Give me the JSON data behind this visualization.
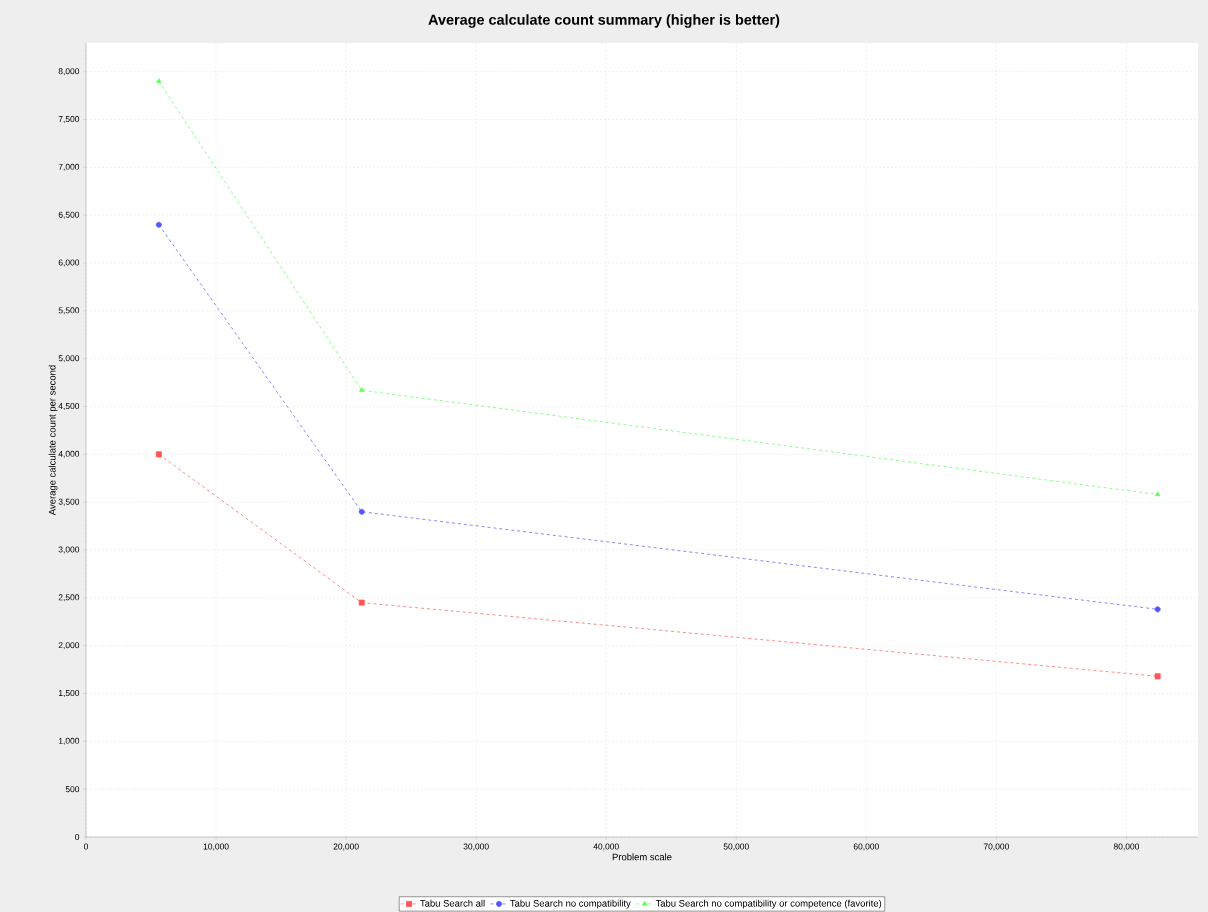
{
  "chart_data": {
    "type": "line",
    "title": "Average calculate count summary (higher is better)",
    "xlabel": "Problem scale",
    "ylabel": "Average calculate count per second",
    "series": [
      {
        "name": "Tabu Search all",
        "color": "#ff5555",
        "marker": "square",
        "x": [
          5600,
          21200,
          82400
        ],
        "values": [
          4000,
          2450,
          1680
        ]
      },
      {
        "name": "Tabu Search no compatibility",
        "color": "#5555ff",
        "marker": "circle",
        "x": [
          5600,
          21200,
          82400
        ],
        "values": [
          6400,
          3400,
          2380
        ]
      },
      {
        "name": "Tabu Search no compatibility or competence (favorite)",
        "color": "#55ff55",
        "marker": "triangle",
        "x": [
          5600,
          21200,
          82400
        ],
        "values": [
          7900,
          4670,
          3580
        ]
      }
    ],
    "xlim": [
      0,
      85500
    ],
    "ylim": [
      0,
      8300
    ],
    "xticks": [
      0,
      {
        "value": 10000,
        "label": "10,000"
      },
      {
        "value": 20000,
        "label": "20,000"
      },
      {
        "value": 30000,
        "label": "30,000"
      },
      {
        "value": 40000,
        "label": "40,000"
      },
      {
        "value": 50000,
        "label": "50,000"
      },
      {
        "value": 60000,
        "label": "60,000"
      },
      {
        "value": 70000,
        "label": "70,000"
      },
      {
        "value": 80000,
        "label": "80,000"
      }
    ],
    "yticks": [
      0,
      500,
      {
        "value": 1000,
        "label": "1,000"
      },
      {
        "value": 1500,
        "label": "1,500"
      },
      {
        "value": 2000,
        "label": "2,000"
      },
      {
        "value": 2500,
        "label": "2,500"
      },
      {
        "value": 3000,
        "label": "3,000"
      },
      {
        "value": 3500,
        "label": "3,500"
      },
      {
        "value": 4000,
        "label": "4,000"
      },
      {
        "value": 4500,
        "label": "4,500"
      },
      {
        "value": 5000,
        "label": "5,000"
      },
      {
        "value": 5500,
        "label": "5,500"
      },
      {
        "value": 6000,
        "label": "6,000"
      },
      {
        "value": 6500,
        "label": "6,500"
      },
      {
        "value": 7000,
        "label": "7,000"
      },
      {
        "value": 7500,
        "label": "7,500"
      },
      {
        "value": 8000,
        "label": "8,000"
      }
    ],
    "grid": true,
    "legend": "bottom",
    "line_style": "dashed"
  }
}
